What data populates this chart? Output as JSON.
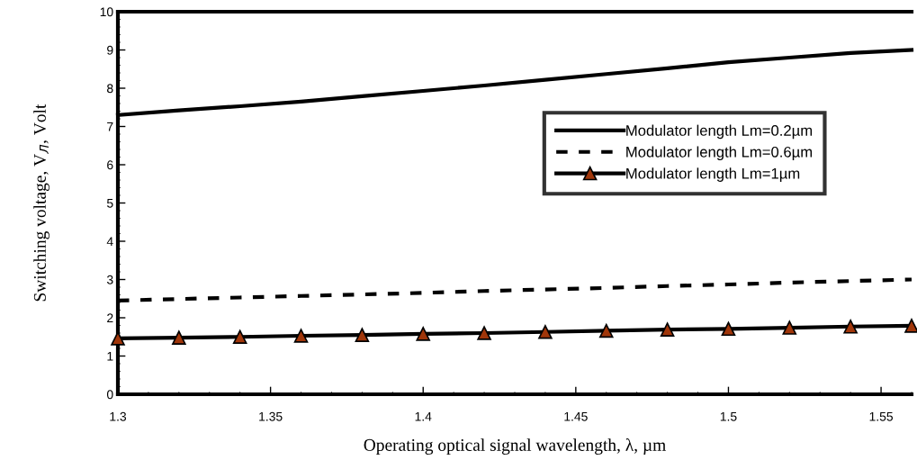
{
  "chart_data": {
    "type": "line",
    "xlabel": "Operating optical signal wavelength, λ, µm",
    "ylabel": "Switching voltage, V$_{Л}$, Volt",
    "x": [
      1.3,
      1.32,
      1.34,
      1.36,
      1.38,
      1.4,
      1.42,
      1.44,
      1.46,
      1.48,
      1.5,
      1.52,
      1.54,
      1.56
    ],
    "series": [
      {
        "name": "Modulator length Lm=0.2µm",
        "color": "#000000",
        "line_style": "solid",
        "marker": "none",
        "values": [
          7.3,
          7.42,
          7.53,
          7.65,
          7.79,
          7.93,
          8.07,
          8.22,
          8.37,
          8.52,
          8.68,
          8.8,
          8.92,
          9.0
        ]
      },
      {
        "name": "Modulator length Lm=0.6µm",
        "color": "#000000",
        "line_style": "dashed",
        "marker": "none",
        "values": [
          2.45,
          2.49,
          2.53,
          2.57,
          2.61,
          2.65,
          2.7,
          2.74,
          2.78,
          2.83,
          2.87,
          2.92,
          2.96,
          3.0
        ]
      },
      {
        "name": "Modulator length Lm=1µm",
        "color": "#a0360a",
        "line_style": "solid",
        "marker": "triangle",
        "values": [
          1.46,
          1.48,
          1.5,
          1.53,
          1.55,
          1.58,
          1.6,
          1.63,
          1.66,
          1.69,
          1.71,
          1.74,
          1.77,
          1.79
        ]
      }
    ],
    "xlim": [
      1.3,
      1.56
    ],
    "xticks": [
      1.3,
      1.35,
      1.4,
      1.45,
      1.5,
      1.55
    ],
    "ylim": [
      0,
      10
    ],
    "yticks": [
      0,
      1,
      2,
      3,
      4,
      5,
      6,
      7,
      8,
      9,
      10
    ],
    "grid": false,
    "legend": "right"
  }
}
